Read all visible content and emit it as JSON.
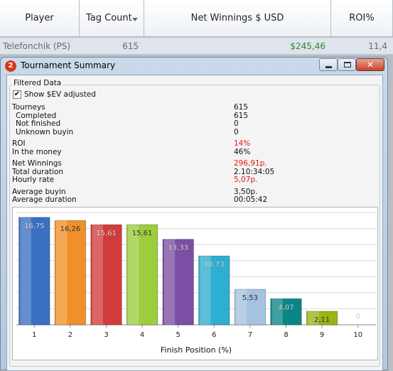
{
  "table": {
    "columns": [
      "Player",
      "Tag Count",
      "Net Winnings $ USD",
      "ROI%"
    ],
    "rows": [
      {
        "cells": [
          "Telefonchik (PS)",
          "615",
          "$245,46",
          "11,4"
        ],
        "colors": [
          "#6a6a6a",
          "#6a6a6a",
          "#2a8a2a",
          "#6a6a6a"
        ]
      }
    ]
  },
  "window": {
    "icon": "2",
    "title": "Tournament Summary"
  },
  "filter": {
    "group_title": "Filtered Data",
    "checkbox_label": "Show $EV adjusted",
    "checked": true
  },
  "stats": [
    [
      {
        "label": "Tourneys",
        "value": "615"
      },
      {
        "label": "Completed",
        "value": "615",
        "indent": true
      },
      {
        "label": "Not finished",
        "value": "0",
        "indent": true
      },
      {
        "label": "Unknown buyin",
        "value": "0",
        "indent": true
      }
    ],
    [
      {
        "label": "ROI",
        "value": "14%",
        "color": "#e01818"
      },
      {
        "label": "In the money",
        "value": "46%"
      }
    ],
    [
      {
        "label": "Net Winnings",
        "value": "296,91р.",
        "color": "#e01818"
      },
      {
        "label": "Total duration",
        "value": "2.10:34:05"
      },
      {
        "label": "Hourly rate",
        "value": "5,07р.",
        "color": "#e01818"
      }
    ],
    [
      {
        "label": "Average buyin",
        "value": "3,50р."
      },
      {
        "label": "Average duration",
        "value": "00:05:42"
      }
    ]
  ],
  "chart_data": {
    "type": "bar",
    "x_label": "Finish Position (%)",
    "categories": [
      "1",
      "2",
      "3",
      "4",
      "5",
      "6",
      "7",
      "8",
      "9",
      "10"
    ],
    "values": [
      16.75,
      16.26,
      15.61,
      15.61,
      13.33,
      10.73,
      5.53,
      4.07,
      2.11,
      0
    ],
    "value_labels": [
      "16,75",
      "16,26",
      "15,61",
      "15,61",
      "13,33",
      "10,73",
      "5,53",
      "4,07",
      "2,11",
      "0"
    ],
    "colors": [
      "#3a6fc2",
      "#f0902a",
      "#d23b3b",
      "#9ccd3c",
      "#7b4fa3",
      "#2eaed0",
      "#a6c2df",
      "#0b8585",
      "#9ab512",
      "#dde3ea"
    ],
    "ylim": [
      0,
      17.5
    ],
    "yticks": [
      0,
      2.5,
      5,
      7.5,
      10,
      12.5,
      15,
      17.5
    ],
    "grid": true,
    "show_ytick_labels": false
  }
}
